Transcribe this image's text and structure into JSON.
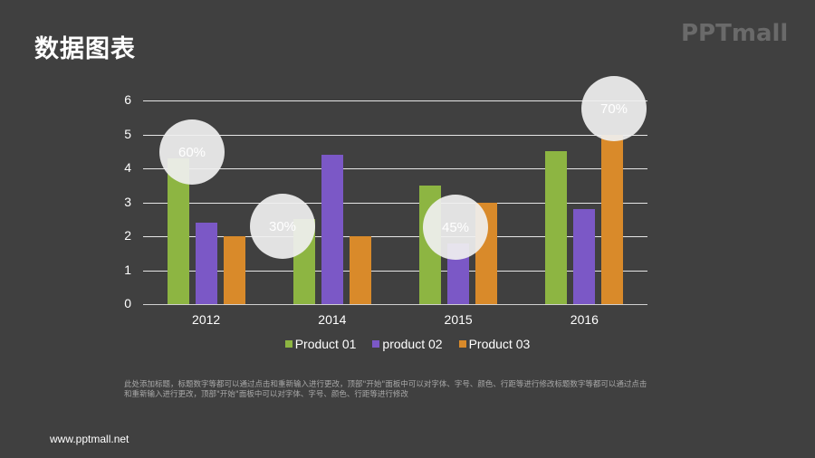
{
  "header": {
    "title": "数据图表",
    "logo": "PPTmall"
  },
  "chart_data": {
    "type": "bar",
    "title": "",
    "xlabel": "",
    "ylabel": "",
    "categories": [
      "2012",
      "2014",
      "2015",
      "2016"
    ],
    "series": [
      {
        "name": "Product 01",
        "color": "#8db542",
        "values": [
          4.3,
          2.5,
          3.5,
          4.5
        ]
      },
      {
        "name": "product 02",
        "color": "#7b58c6",
        "values": [
          2.4,
          4.4,
          1.8,
          2.8
        ]
      },
      {
        "name": "Product 03",
        "color": "#d98a2a",
        "values": [
          2.0,
          2.0,
          3.0,
          5.0
        ]
      }
    ],
    "yticks": [
      "0",
      "1",
      "2",
      "3",
      "4",
      "5",
      "6"
    ],
    "ylim": [
      0,
      6
    ],
    "grid": true,
    "legend_position": "bottom",
    "annotations": [
      {
        "label": "60%",
        "category": "2012"
      },
      {
        "label": "30%",
        "category": "2014"
      },
      {
        "label": "45%",
        "category": "2015"
      },
      {
        "label": "70%",
        "category": "2016"
      }
    ]
  },
  "note": "此处添加标题，标题数字等都可以通过点击和重新输入进行更改，顶部\"开始\"面板中可以对字体、字号、颜色、行距等进行修改标题数字等都可以通过点击和重新输入进行更改，顶部\"开始\"面板中可以对字体、字号、颜色、行距等进行修改",
  "footer": {
    "url": "www.pptmall.net"
  }
}
